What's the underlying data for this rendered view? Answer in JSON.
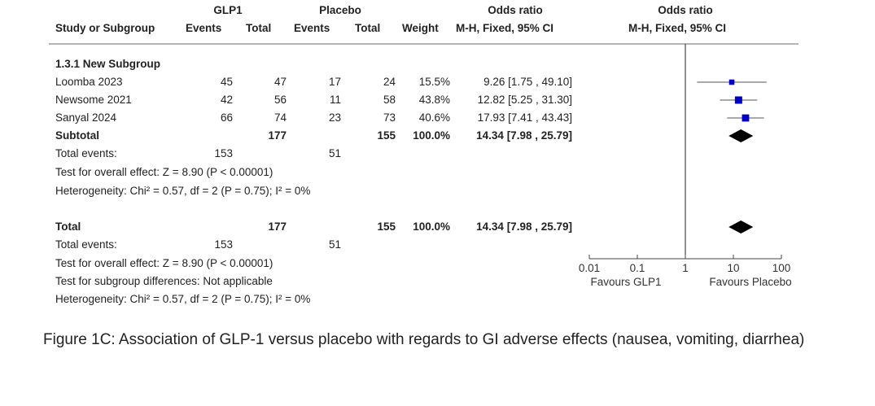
{
  "headers": {
    "group1": "GLP1",
    "group2": "Placebo",
    "or_top_left": "Odds ratio",
    "or_top_right": "Odds ratio",
    "study": "Study or Subgroup",
    "events1": "Events",
    "total1": "Total",
    "events2": "Events",
    "total2": "Total",
    "weight": "Weight",
    "method_left": "M-H, Fixed, 95% CI",
    "method_right": "M-H, Fixed, 95% CI"
  },
  "subgroup_title": "1.3.1 New Subgroup",
  "studies": [
    {
      "name": "Loomba 2023",
      "e1": "45",
      "n1": "47",
      "e2": "17",
      "n2": "24",
      "weight": "15.5%",
      "ci_text": "9.26 [1.75 , 49.10]"
    },
    {
      "name": "Newsome 2021",
      "e1": "42",
      "n1": "56",
      "e2": "11",
      "n2": "58",
      "weight": "43.8%",
      "ci_text": "12.82 [5.25 , 31.30]"
    },
    {
      "name": "Sanyal 2024",
      "e1": "66",
      "n1": "74",
      "e2": "23",
      "n2": "73",
      "weight": "40.6%",
      "ci_text": "17.93 [7.41 , 43.43]"
    }
  ],
  "subtotal": {
    "label": "Subtotal",
    "n1": "177",
    "n2": "155",
    "weight": "100.0%",
    "ci_text": "14.34 [7.98 , 25.79]"
  },
  "subgroup_stats": {
    "events_label": "Total events:",
    "events1": "153",
    "events2": "51",
    "overall_effect": "Test for overall effect: Z = 8.90 (P < 0.00001)",
    "heterogeneity": "Heterogeneity: Chi² = 0.57, df = 2 (P = 0.75); I² = 0%"
  },
  "total": {
    "label": "Total",
    "n1": "177",
    "n2": "155",
    "weight": "100.0%",
    "ci_text": "14.34 [7.98 , 25.79]"
  },
  "total_stats": {
    "events_label": "Total events:",
    "events1": "153",
    "events2": "51",
    "overall_effect": "Test for overall effect: Z = 8.90 (P < 0.00001)",
    "subgroup_diff": "Test for subgroup differences: Not applicable",
    "heterogeneity": "Heterogeneity: Chi² = 0.57, df = 2 (P = 0.75); I² = 0%"
  },
  "caption": "Figure 1C: Association of GLP-1 versus placebo with regards to GI adverse effects (nausea, vomiting, diarrhea)",
  "chart_data": {
    "type": "forest",
    "scale": "log",
    "xlim": [
      0.01,
      100
    ],
    "ticks": [
      0.01,
      0.1,
      1,
      10,
      100
    ],
    "tick_labels": [
      "0.01",
      "0.1",
      "1",
      "10",
      "100"
    ],
    "favours_left": "Favours GLP1",
    "favours_right": "Favours Placebo",
    "studies": [
      {
        "name": "Loomba 2023",
        "or": 9.26,
        "lo": 1.75,
        "hi": 49.1,
        "weight": 15.5
      },
      {
        "name": "Newsome 2021",
        "or": 12.82,
        "lo": 5.25,
        "hi": 31.3,
        "weight": 43.8
      },
      {
        "name": "Sanyal 2024",
        "or": 17.93,
        "lo": 7.41,
        "hi": 43.43,
        "weight": 40.6
      }
    ],
    "pooled": [
      {
        "name": "Subtotal",
        "or": 14.34,
        "lo": 7.98,
        "hi": 25.79
      },
      {
        "name": "Total",
        "or": 14.34,
        "lo": 7.98,
        "hi": 25.79
      }
    ],
    "colors": {
      "marker": "#0000cc",
      "diamond": "#000000",
      "line": "#555555"
    }
  }
}
